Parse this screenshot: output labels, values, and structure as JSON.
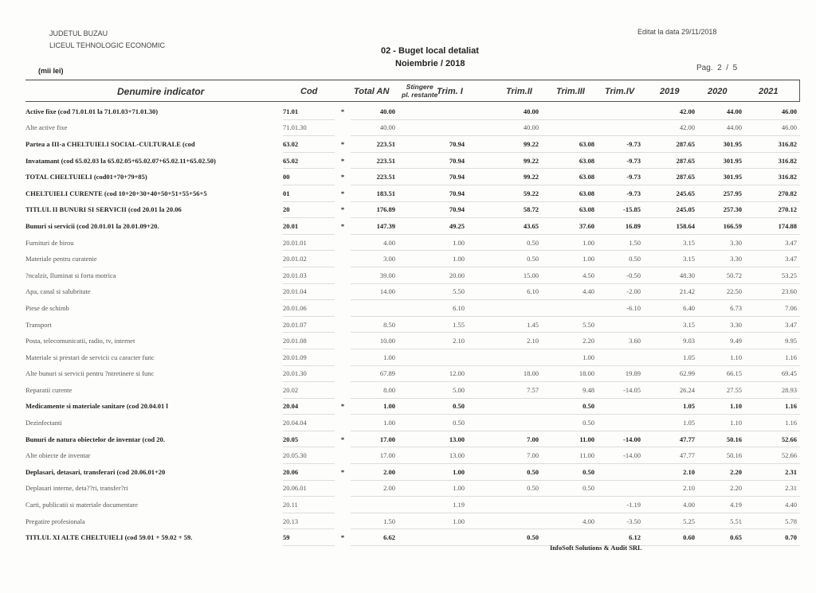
{
  "header": {
    "county": "JUDETUL BUZAU",
    "institution": "LICEUL TEHNOLOGIC ECONOMIC",
    "unit": "(mii lei)",
    "title": "02 - Buget local detaliat",
    "period": "Noiembrie / 2018",
    "edited": "Editat la data 29/11/2018",
    "page_label": "Pag.",
    "page_current": "2",
    "page_sep": "/",
    "page_total": "5"
  },
  "columns": {
    "name": "Denumire indicator",
    "cod": "Cod",
    "total": "Total AN",
    "stingere_1": "Stingere",
    "stingere_2": "pl. restante",
    "t1": "Trim. I",
    "t2": "Trim.II",
    "t3": "Trim.III",
    "t4": "Trim.IV",
    "y2019": "2019",
    "y2020": "2020",
    "y2021": "2021"
  },
  "rows": [
    {
      "bold": true,
      "name": "Active fixe   (cod 71.01.01 la 71.01.03+71.01.30)",
      "cod": "71.01",
      "star": "*",
      "total": "40.00",
      "sting": "",
      "t1": "",
      "t2": "40.00",
      "t3": "",
      "t4": "",
      "y2019": "42.00",
      "y2020": "44.00",
      "y2021": "46.00"
    },
    {
      "bold": false,
      "name": "Alte active fixe",
      "cod": "71.01.30",
      "star": "",
      "total": "40.00",
      "sting": "",
      "t1": "",
      "t2": "40.00",
      "t3": "",
      "t4": "",
      "y2019": "42.00",
      "y2020": "44.00",
      "y2021": "46.00"
    },
    {
      "bold": true,
      "name": "Partea a III-a CHELTUIELI SOCIAL-CULTURALE   (cod",
      "cod": "63.02",
      "star": "*",
      "total": "223.51",
      "sting": "",
      "t1": "70.94",
      "t2": "99.22",
      "t3": "63.08",
      "t4": "-9.73",
      "y2019": "287.65",
      "y2020": "301.95",
      "y2021": "316.82"
    },
    {
      "bold": true,
      "name": "Invatamant   (cod 65.02.03 la 65.02.05+65.02.07+65.02.11+65.02.50)",
      "cod": "65.02",
      "star": "*",
      "total": "223.51",
      "sting": "",
      "t1": "70.94",
      "t2": "99.22",
      "t3": "63.08",
      "t4": "-9.73",
      "y2019": "287.65",
      "y2020": "301.95",
      "y2021": "316.82"
    },
    {
      "bold": true,
      "name": "TOTAL CHELTUIELI  (cod01+70+79+85)",
      "cod": "00",
      "star": "*",
      "total": "223.51",
      "sting": "",
      "t1": "70.94",
      "t2": "99.22",
      "t3": "63.08",
      "t4": "-9.73",
      "y2019": "287.65",
      "y2020": "301.95",
      "y2021": "316.82"
    },
    {
      "bold": true,
      "name": "CHELTUIELI CURENTE  (cod 10+20+30+40+50+51+55+56+5",
      "cod": "01",
      "star": "*",
      "total": "183.51",
      "sting": "",
      "t1": "70.94",
      "t2": "59.22",
      "t3": "63.08",
      "t4": "-9.73",
      "y2019": "245.65",
      "y2020": "257.95",
      "y2021": "270.82"
    },
    {
      "bold": true,
      "name": "TITLUL II  BUNURI SI SERVICII  (cod 20.01 la 20.06",
      "cod": "20",
      "star": "*",
      "total": "176.89",
      "sting": "",
      "t1": "70.94",
      "t2": "58.72",
      "t3": "63.08",
      "t4": "-15.85",
      "y2019": "245.05",
      "y2020": "257.30",
      "y2021": "270.12"
    },
    {
      "bold": true,
      "name": "Bunuri si servicii   (cod 20.01.01 la 20.01.09+20.",
      "cod": "20.01",
      "star": "*",
      "total": "147.39",
      "sting": "",
      "t1": "49.25",
      "t2": "43.65",
      "t3": "37.60",
      "t4": "16.89",
      "y2019": "158.64",
      "y2020": "166.59",
      "y2021": "174.88"
    },
    {
      "bold": false,
      "name": "Furnituri de birou",
      "cod": "20.01.01",
      "star": "",
      "total": "4.00",
      "sting": "",
      "t1": "1.00",
      "t2": "0.50",
      "t3": "1.00",
      "t4": "1.50",
      "y2019": "3.15",
      "y2020": "3.30",
      "y2021": "3.47"
    },
    {
      "bold": false,
      "name": "Materiale pentru curatenie",
      "cod": "20.01.02",
      "star": "",
      "total": "3.00",
      "sting": "",
      "t1": "1.00",
      "t2": "0.50",
      "t3": "1.00",
      "t4": "0.50",
      "y2019": "3.15",
      "y2020": "3.30",
      "y2021": "3.47"
    },
    {
      "bold": false,
      "name": "?ncalzit, Iluminat si forta motrica",
      "cod": "20.01.03",
      "star": "",
      "total": "39.00",
      "sting": "",
      "t1": "20.00",
      "t2": "15.00",
      "t3": "4.50",
      "t4": "-0.50",
      "y2019": "48.30",
      "y2020": "50.72",
      "y2021": "53.25"
    },
    {
      "bold": false,
      "name": "Apa, canal si salubritate",
      "cod": "20.01.04",
      "star": "",
      "total": "14.00",
      "sting": "",
      "t1": "5.50",
      "t2": "6.10",
      "t3": "4.40",
      "t4": "-2.00",
      "y2019": "21.42",
      "y2020": "22.50",
      "y2021": "23.60"
    },
    {
      "bold": false,
      "name": "Piese de schimb",
      "cod": "20.01.06",
      "star": "",
      "total": "",
      "sting": "",
      "t1": "6.10",
      "t2": "",
      "t3": "",
      "t4": "-6.10",
      "y2019": "6.40",
      "y2020": "6.73",
      "y2021": "7.06"
    },
    {
      "bold": false,
      "name": "Transport",
      "cod": "20.01.07",
      "star": "",
      "total": "8.50",
      "sting": "",
      "t1": "1.55",
      "t2": "1.45",
      "t3": "5.50",
      "t4": "",
      "y2019": "3.15",
      "y2020": "3.30",
      "y2021": "3.47"
    },
    {
      "bold": false,
      "name": "Posta, telecomunicatii, radio, tv, internet",
      "cod": "20.01.08",
      "star": "",
      "total": "10.00",
      "sting": "",
      "t1": "2.10",
      "t2": "2.10",
      "t3": "2.20",
      "t4": "3.60",
      "y2019": "9.03",
      "y2020": "9.49",
      "y2021": "9.95"
    },
    {
      "bold": false,
      "name": "Materiale si prestari de servicii cu caracter func",
      "cod": "20.01.09",
      "star": "",
      "total": "1.00",
      "sting": "",
      "t1": "",
      "t2": "",
      "t3": "1.00",
      "t4": "",
      "y2019": "1.05",
      "y2020": "1.10",
      "y2021": "1.16"
    },
    {
      "bold": false,
      "name": "Alte bunuri si servicii pentru ?ntretinere si func",
      "cod": "20.01.30",
      "star": "",
      "total": "67.89",
      "sting": "",
      "t1": "12.00",
      "t2": "18.00",
      "t3": "18.00",
      "t4": "19.89",
      "y2019": "62.99",
      "y2020": "66.15",
      "y2021": "69.45"
    },
    {
      "bold": false,
      "name": "Reparatii curente",
      "cod": "20.02",
      "star": "",
      "total": "8.00",
      "sting": "",
      "t1": "5.00",
      "t2": "7.57",
      "t3": "9.48",
      "t4": "-14.05",
      "y2019": "26.24",
      "y2020": "27.55",
      "y2021": "28.93"
    },
    {
      "bold": true,
      "name": "Medicamente si materiale sanitare  (cod 20.04.01 l",
      "cod": "20.04",
      "star": "*",
      "total": "1.00",
      "sting": "",
      "t1": "0.50",
      "t2": "",
      "t3": "0.50",
      "t4": "",
      "y2019": "1.05",
      "y2020": "1.10",
      "y2021": "1.16"
    },
    {
      "bold": false,
      "name": "Dezinfectanti",
      "cod": "20.04.04",
      "star": "",
      "total": "1.00",
      "sting": "",
      "t1": "0.50",
      "t2": "",
      "t3": "0.50",
      "t4": "",
      "y2019": "1.05",
      "y2020": "1.10",
      "y2021": "1.16"
    },
    {
      "bold": true,
      "name": "Bunuri de natura obiectelor de inventar  (cod 20.",
      "cod": "20.05",
      "star": "*",
      "total": "17.00",
      "sting": "",
      "t1": "13.00",
      "t2": "7.00",
      "t3": "11.00",
      "t4": "-14.00",
      "y2019": "47.77",
      "y2020": "50.16",
      "y2021": "52.66"
    },
    {
      "bold": false,
      "name": "Alte obiecte de inventar",
      "cod": "20.05.30",
      "star": "",
      "total": "17.00",
      "sting": "",
      "t1": "13.00",
      "t2": "7.00",
      "t3": "11.00",
      "t4": "-14.00",
      "y2019": "47.77",
      "y2020": "50.16",
      "y2021": "52.66"
    },
    {
      "bold": true,
      "name": "Deplasari, detasari, transferari  (cod 20.06.01+20",
      "cod": "20.06",
      "star": "*",
      "total": "2.00",
      "sting": "",
      "t1": "1.00",
      "t2": "0.50",
      "t3": "0.50",
      "t4": "",
      "y2019": "2.10",
      "y2020": "2.20",
      "y2021": "2.31"
    },
    {
      "bold": false,
      "name": "Deplasari interne, deta??ri, transfer?ri",
      "cod": "20.06.01",
      "star": "",
      "total": "2.00",
      "sting": "",
      "t1": "1.00",
      "t2": "0.50",
      "t3": "0.50",
      "t4": "",
      "y2019": "2.10",
      "y2020": "2.20",
      "y2021": "2.31"
    },
    {
      "bold": false,
      "name": "Carti, publicatii si materiale documentare",
      "cod": "20.11",
      "star": "",
      "total": "",
      "sting": "",
      "t1": "1.19",
      "t2": "",
      "t3": "",
      "t4": "-1.19",
      "y2019": "4.00",
      "y2020": "4.19",
      "y2021": "4.40"
    },
    {
      "bold": false,
      "name": "Pregatire profesionala",
      "cod": "20.13",
      "star": "",
      "total": "1.50",
      "sting": "",
      "t1": "1.00",
      "t2": "",
      "t3": "4.00",
      "t4": "-3.50",
      "y2019": "5.25",
      "y2020": "5.51",
      "y2021": "5.78"
    },
    {
      "bold": true,
      "name": "TITLUL XI ALTE CHELTUIELI (cod 59.01 + 59.02 + 59.",
      "cod": "59",
      "star": "*",
      "total": "6.62",
      "sting": "",
      "t1": "",
      "t2": "0.50",
      "t3": "",
      "t4": "6.12",
      "y2019": "0.60",
      "y2020": "0.65",
      "y2021": "0.70"
    }
  ],
  "footer": {
    "company": "InfoSoft Solutions & Audit SRL"
  }
}
